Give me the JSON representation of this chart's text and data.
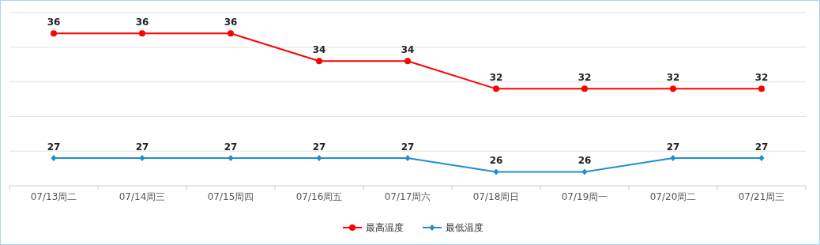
{
  "chart_data": {
    "type": "line",
    "categories": [
      "07/13周二",
      "07/14周三",
      "07/15周四",
      "07/16周五",
      "07/17周六",
      "07/18周日",
      "07/19周一",
      "07/20周二",
      "07/21周三"
    ],
    "series": [
      {
        "name": "最高温度",
        "color": "#ff0000",
        "marker": "circle",
        "values": [
          36,
          36,
          36,
          34,
          34,
          32,
          32,
          32,
          32
        ]
      },
      {
        "name": "最低温度",
        "color": "#1e8fd0",
        "marker": "diamond",
        "values": [
          27,
          27,
          27,
          27,
          27,
          26,
          26,
          27,
          27
        ]
      }
    ],
    "ylim": [
      25,
      37.5
    ],
    "yticks": [
      {
        "value": 25,
        "label": null
      },
      {
        "value": 27.5,
        "label": null
      },
      {
        "value": 30,
        "label": null
      },
      {
        "value": 32.5,
        "label": null
      },
      {
        "value": 35,
        "label": null
      },
      {
        "value": 37.5,
        "label": null
      }
    ],
    "grid": "y",
    "legend": "bottom",
    "data_labels": true,
    "tick_labels": "x",
    "line_style": "solid"
  }
}
